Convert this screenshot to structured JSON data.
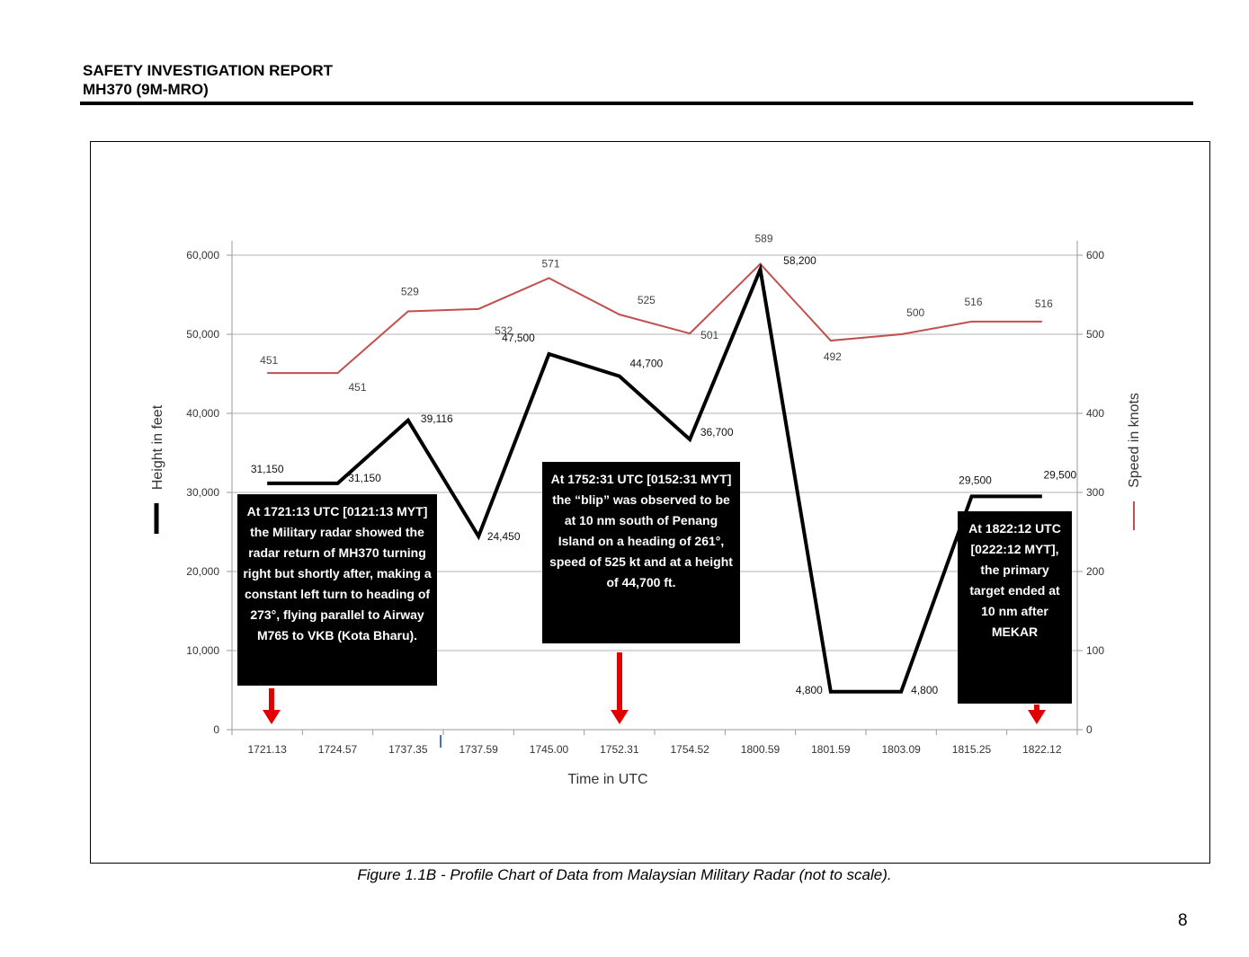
{
  "header": {
    "title": "SAFETY INVESTIGATION REPORT",
    "subtitle": "MH370 (9M-MRO)"
  },
  "caption": "Figure 1.1B - Profile Chart of Data from Malaysian Military Radar (not to scale).",
  "page_number": "8",
  "colors": {
    "height_line": "#000000",
    "speed_line": "#c0504d",
    "arrow": "#e00000",
    "gridline": "#d9d9d9"
  },
  "callouts": [
    {
      "text": "At 1721:13 UTC [0121:13 MYT] the Military radar showed the radar return of MH370 turning right but shortly after, making a constant left turn to heading of 273°, flying parallel to Airway M765 to VKB (Kota Bharu)."
    },
    {
      "text": "At 1752:31 UTC [0152:31 MYT] the “blip” was observed to be at 10 nm south of Penang Island on a heading of 261°, speed of 525 kt and at a height of 44,700 ft."
    },
    {
      "text": "At 1822:12 UTC [0222:12 MYT], the primary target ended at 10 nm after MEKAR"
    }
  ],
  "chart_data": {
    "type": "line",
    "xlabel": "Time in UTC",
    "categories": [
      "1721.13",
      "1724.57",
      "1737.35",
      "1737.59",
      "1745.00",
      "1752.31",
      "1754.52",
      "1800.59",
      "1801.59",
      "1803.09",
      "1815.25",
      "1822.12"
    ],
    "y_left": {
      "label": "Height in feet",
      "range": [
        0,
        60000
      ],
      "ticks": [
        "0",
        "10,000",
        "20,000",
        "30,000",
        "40,000",
        "50,000",
        "60,000"
      ]
    },
    "y_right": {
      "label": "Speed in knots",
      "range": [
        0,
        600
      ],
      "ticks": [
        "0",
        "100",
        "200",
        "300",
        "400",
        "500",
        "600"
      ]
    },
    "grid": true,
    "legend": "axis titles with colored line markers",
    "series": [
      {
        "name": "Height in feet",
        "axis": "left",
        "values": [
          31150,
          31150,
          39116,
          24450,
          47500,
          44700,
          36700,
          58200,
          4800,
          4800,
          29500,
          29500
        ],
        "labels": [
          "31,150",
          "31,150",
          "39,116",
          "24,450",
          "47,500",
          "44,700",
          "36,700",
          "58,200",
          "4,800",
          "4,800",
          "29,500",
          "29,500"
        ]
      },
      {
        "name": "Speed in knots",
        "axis": "right",
        "values": [
          451,
          451,
          529,
          532,
          571,
          525,
          501,
          589,
          492,
          500,
          516,
          516
        ],
        "labels": [
          "451",
          "451",
          "529",
          "532",
          "571",
          "525",
          "501",
          "589",
          "492",
          "500",
          "516",
          "516"
        ]
      }
    ]
  }
}
